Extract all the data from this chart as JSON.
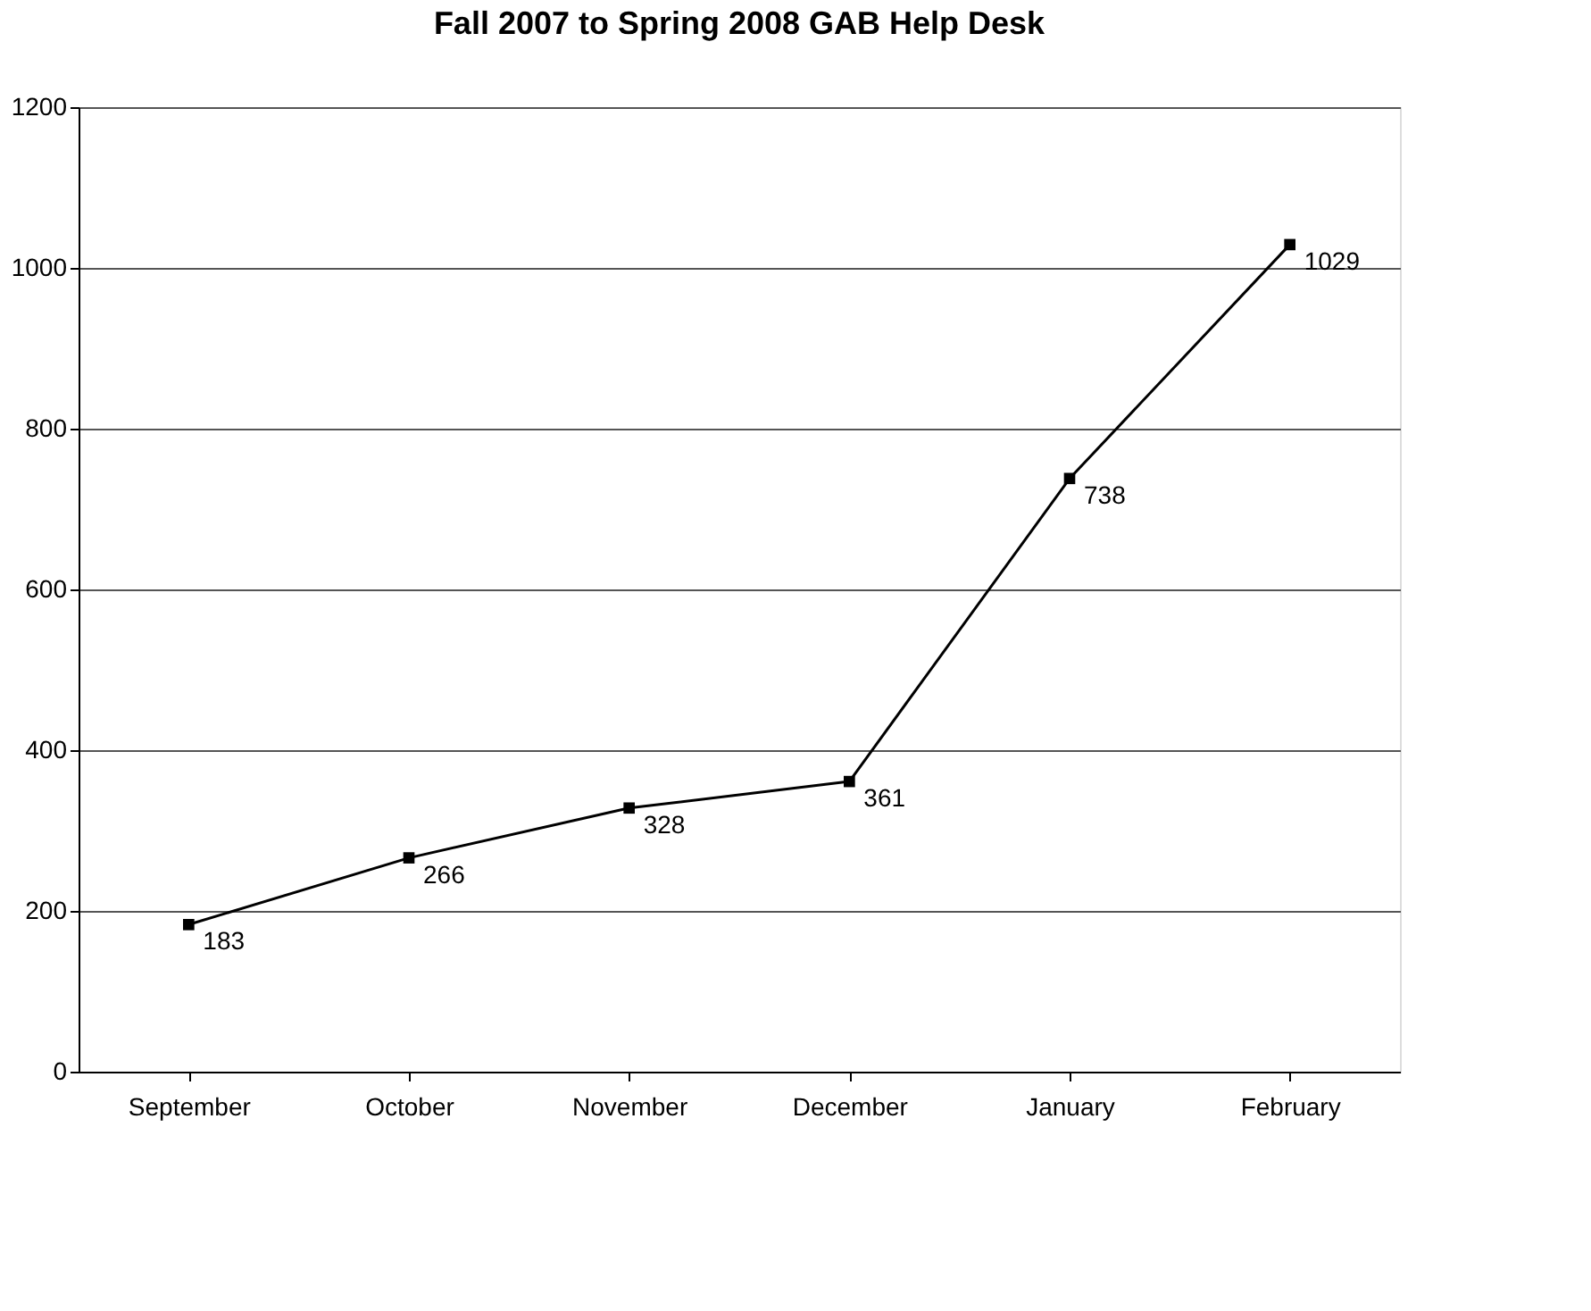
{
  "chart_data": {
    "type": "line",
    "title": "Fall 2007 to Spring 2008 GAB Help Desk",
    "categories": [
      "September",
      "October",
      "November",
      "December",
      "January",
      "February"
    ],
    "series": [
      {
        "color": "#000000",
        "values": [
          183,
          266,
          328,
          361,
          738,
          1029
        ]
      }
    ],
    "ylim": [
      0,
      1200
    ],
    "yticks": [
      0,
      200,
      400,
      600,
      800,
      1000,
      1200
    ],
    "grid": "y",
    "marker": "square",
    "line_style": "solid",
    "data_labels": true
  }
}
